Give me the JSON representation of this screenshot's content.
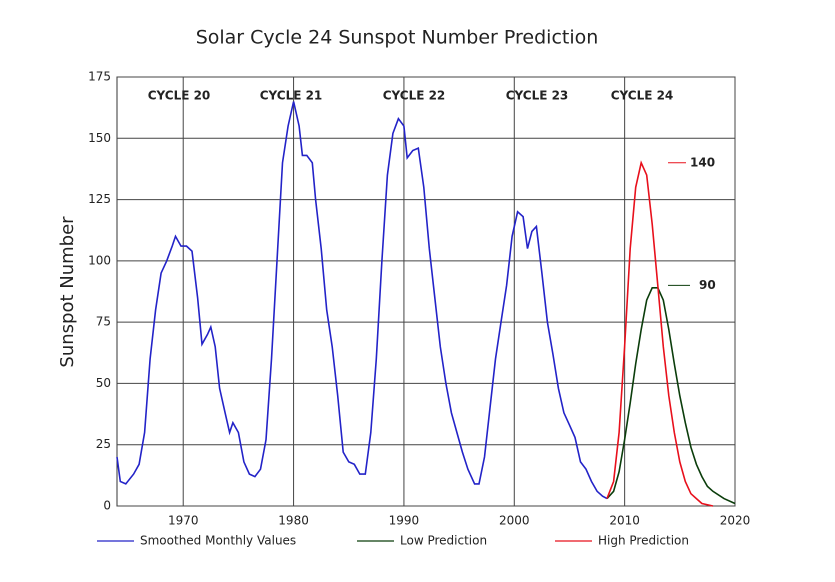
{
  "chart_data": {
    "type": "line",
    "title": "Solar Cycle 24 Sunspot Number Prediction",
    "y_label": "Sunspot Number",
    "xlim": [
      1964,
      2020
    ],
    "xticks": [
      1970,
      1980,
      1990,
      2000,
      2010,
      2020
    ],
    "ylim": [
      0,
      175
    ],
    "yticks": [
      0,
      25,
      50,
      75,
      100,
      125,
      150,
      175
    ],
    "grid": true,
    "annotations": [
      "CYCLE 20",
      "CYCLE 21",
      "CYCLE 22",
      "CYCLE 23",
      "CYCLE 24"
    ],
    "peak_labels": [
      140,
      90
    ],
    "series": [
      {
        "name": "Smoothed Monthly Values",
        "color": "#2323c8",
        "x": [
          1964.0,
          1964.3,
          1964.8,
          1965.5,
          1966,
          1966.5,
          1967,
          1967.5,
          1968,
          1968.5,
          1969,
          1969.3,
          1969.8,
          1970.3,
          1970.8,
          1971.3,
          1971.7,
          1972.2,
          1972.5,
          1972.9,
          1973.3,
          1973.8,
          1974.2,
          1974.5,
          1975,
          1975.5,
          1976,
          1976.5,
          1977,
          1977.5,
          1978,
          1978.5,
          1979,
          1979.5,
          1980,
          1980.5,
          1980.8,
          1981.2,
          1981.7,
          1982,
          1982.5,
          1983,
          1983.5,
          1984,
          1984.5,
          1985,
          1985.5,
          1986,
          1986.5,
          1987,
          1987.5,
          1988,
          1988.5,
          1989,
          1989.5,
          1990,
          1990.3,
          1990.8,
          1991.3,
          1991.8,
          1992.3,
          1992.8,
          1993.3,
          1993.8,
          1994.3,
          1994.8,
          1995.3,
          1995.8,
          1996.4,
          1996.8,
          1997.3,
          1997.8,
          1998.3,
          1998.8,
          1999.3,
          1999.8,
          2000.3,
          2000.8,
          2001.2,
          2001.6,
          2002,
          2002.5,
          2003,
          2003.5,
          2004,
          2004.5,
          2005,
          2005.5,
          2006,
          2006.5,
          2007,
          2007.5,
          2008,
          2008.4
        ],
        "values": [
          20,
          10,
          9,
          13,
          17,
          30,
          60,
          80,
          95,
          100,
          106,
          110,
          106,
          106,
          104,
          85,
          66,
          70,
          73,
          65,
          48,
          38,
          30,
          34,
          30,
          18,
          13,
          12,
          15,
          27,
          60,
          100,
          140,
          155,
          165,
          155,
          143,
          143,
          140,
          125,
          105,
          80,
          65,
          45,
          22,
          18,
          17,
          13,
          13,
          30,
          60,
          100,
          135,
          152,
          158,
          155,
          142,
          145,
          146,
          130,
          105,
          85,
          65,
          50,
          38,
          30,
          22,
          15,
          9,
          9,
          20,
          40,
          60,
          75,
          90,
          110,
          120,
          118,
          105,
          112,
          114,
          95,
          75,
          62,
          48,
          38,
          33,
          28,
          18,
          15,
          10,
          6,
          4,
          3
        ]
      },
      {
        "name": "Low Prediction",
        "color": "#0b3d0b",
        "x": [
          2008.4,
          2009,
          2009.5,
          2010,
          2010.5,
          2011,
          2011.5,
          2012,
          2012.5,
          2013,
          2013.5,
          2014,
          2014.5,
          2015,
          2015.5,
          2016,
          2016.5,
          2017,
          2017.5,
          2018,
          2019,
          2020
        ],
        "values": [
          3,
          6,
          14,
          27,
          42,
          58,
          72,
          84,
          89,
          89,
          84,
          72,
          58,
          45,
          34,
          24,
          17,
          12,
          8,
          6,
          3,
          1
        ]
      },
      {
        "name": "High Prediction",
        "color": "#e8101c",
        "x": [
          2008.4,
          2009,
          2009.5,
          2010,
          2010.5,
          2011,
          2011.5,
          2012,
          2012.5,
          2013,
          2013.5,
          2014,
          2014.5,
          2015,
          2015.5,
          2016,
          2016.5,
          2017,
          2018
        ],
        "values": [
          3,
          10,
          30,
          65,
          105,
          130,
          140,
          135,
          115,
          90,
          65,
          45,
          30,
          18,
          10,
          5,
          3,
          1,
          0
        ]
      }
    ]
  }
}
